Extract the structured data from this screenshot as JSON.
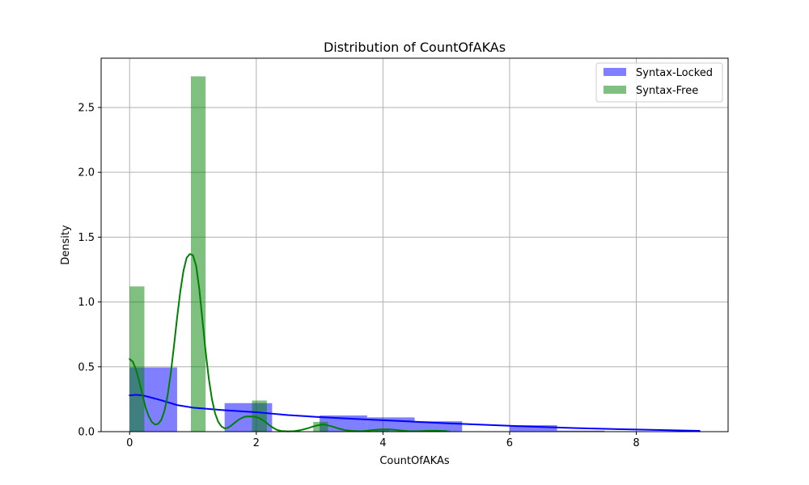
{
  "chart_data": {
    "type": "histogram",
    "title": "Distribution of CountOfAKAs",
    "xlabel": "CountOfAKAs",
    "ylabel": "Density",
    "xlim": [
      -0.45,
      9.45
    ],
    "ylim": [
      0,
      2.88
    ],
    "xticks": [
      0,
      2,
      4,
      6,
      8
    ],
    "yticks": [
      0.0,
      0.5,
      1.0,
      1.5,
      2.0,
      2.5
    ],
    "ytick_labels": [
      "0.0",
      "0.5",
      "1.0",
      "1.5",
      "2.0",
      "2.5"
    ],
    "grid": true,
    "legend_position": "top-right",
    "series": [
      {
        "name": "Syntax-Locked",
        "color": "#0000ff",
        "bars": [
          {
            "x0": 0.0,
            "x1": 0.75,
            "density": 0.495
          },
          {
            "x0": 0.75,
            "x1": 1.5,
            "density": 0.0
          },
          {
            "x0": 1.5,
            "x1": 2.25,
            "density": 0.22
          },
          {
            "x0": 2.25,
            "x1": 3.0,
            "density": 0.0
          },
          {
            "x0": 3.0,
            "x1": 3.75,
            "density": 0.125
          },
          {
            "x0": 3.75,
            "x1": 4.5,
            "density": 0.11
          },
          {
            "x0": 4.5,
            "x1": 5.25,
            "density": 0.08
          },
          {
            "x0": 5.25,
            "x1": 6.0,
            "density": 0.0
          },
          {
            "x0": 6.0,
            "x1": 6.75,
            "density": 0.05
          },
          {
            "x0": 6.75,
            "x1": 7.5,
            "density": 0.008
          },
          {
            "x0": 7.5,
            "x1": 8.25,
            "density": 0.0
          },
          {
            "x0": 8.25,
            "x1": 9.0,
            "density": 0.0
          }
        ],
        "kde": {
          "x": [
            0.0,
            0.1,
            0.2,
            0.3,
            0.5,
            0.75,
            1.0,
            1.5,
            2.0,
            2.5,
            3.0,
            3.5,
            4.0,
            5.0,
            6.0,
            7.0,
            8.0,
            9.0
          ],
          "y": [
            0.28,
            0.284,
            0.28,
            0.268,
            0.242,
            0.205,
            0.185,
            0.165,
            0.15,
            0.128,
            0.112,
            0.1,
            0.088,
            0.065,
            0.045,
            0.028,
            0.016,
            0.006
          ]
        }
      },
      {
        "name": "Syntax-Free",
        "color": "#008000",
        "bars": [
          {
            "x0": 0.0,
            "x1": 0.233,
            "density": 1.12
          },
          {
            "x0": 0.967,
            "x1": 1.2,
            "density": 2.74
          },
          {
            "x0": 1.933,
            "x1": 2.167,
            "density": 0.24
          },
          {
            "x0": 2.9,
            "x1": 3.133,
            "density": 0.075
          },
          {
            "x0": 3.867,
            "x1": 4.1,
            "density": 0.02
          },
          {
            "x0": 4.833,
            "x1": 5.067,
            "density": 0.01
          }
        ],
        "kde": {
          "x": [
            0.0,
            0.05,
            0.1,
            0.15,
            0.2,
            0.25,
            0.3,
            0.35,
            0.4,
            0.45,
            0.5,
            0.55,
            0.6,
            0.65,
            0.7,
            0.75,
            0.8,
            0.85,
            0.9,
            0.95,
            1.0,
            1.05,
            1.1,
            1.15,
            1.2,
            1.25,
            1.3,
            1.35,
            1.4,
            1.45,
            1.5,
            1.55,
            1.6,
            1.65,
            1.7,
            1.75,
            1.8,
            1.85,
            1.9,
            1.95,
            2.0,
            2.05,
            2.1,
            2.15,
            2.2,
            2.25,
            2.3,
            2.35,
            2.4,
            2.5,
            2.6,
            2.7,
            2.8,
            2.9,
            3.0,
            3.05,
            3.1,
            3.2,
            3.3,
            3.4,
            3.5,
            3.6,
            3.7,
            3.8,
            3.9,
            4.0,
            4.1,
            4.2,
            4.3,
            4.4,
            4.5,
            4.6,
            4.7,
            4.8,
            4.9,
            5.0
          ],
          "y": [
            0.56,
            0.54,
            0.48,
            0.39,
            0.29,
            0.19,
            0.12,
            0.075,
            0.055,
            0.06,
            0.09,
            0.16,
            0.28,
            0.45,
            0.66,
            0.88,
            1.08,
            1.24,
            1.34,
            1.37,
            1.36,
            1.28,
            1.1,
            0.86,
            0.62,
            0.41,
            0.25,
            0.14,
            0.075,
            0.04,
            0.025,
            0.03,
            0.045,
            0.065,
            0.085,
            0.1,
            0.112,
            0.117,
            0.118,
            0.116,
            0.112,
            0.104,
            0.09,
            0.072,
            0.052,
            0.035,
            0.02,
            0.01,
            0.005,
            0.002,
            0.004,
            0.012,
            0.024,
            0.04,
            0.052,
            0.055,
            0.052,
            0.04,
            0.024,
            0.012,
            0.006,
            0.004,
            0.005,
            0.01,
            0.015,
            0.018,
            0.017,
            0.013,
            0.008,
            0.004,
            0.003,
            0.004,
            0.006,
            0.007,
            0.006,
            0.004
          ]
        }
      }
    ]
  }
}
